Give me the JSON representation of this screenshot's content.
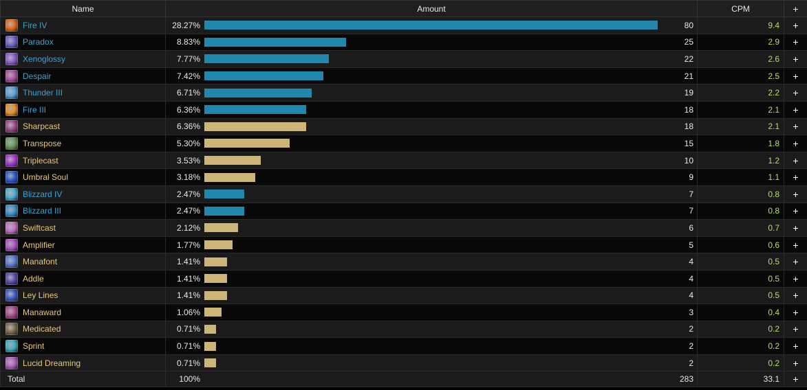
{
  "headers": {
    "name": "Name",
    "amount": "Amount",
    "cpm": "CPM",
    "plus": "+"
  },
  "colors": {
    "spell_text": "#3ea2cf",
    "ability_text": "#e9c878",
    "spell_bar": "#2087ad",
    "ability_bar": "#cdb57a",
    "cpm_text": "#b4e05a"
  },
  "rows": [
    {
      "name": "Fire IV",
      "type": "spell",
      "icon": "fire-iv-icon",
      "icon_color": "#e06a1a",
      "percent": "28.27%",
      "fraction": 0.2827,
      "count": "80",
      "cpm": "9.4"
    },
    {
      "name": "Paradox",
      "type": "spell",
      "icon": "paradox-icon",
      "icon_color": "#6b5fc8",
      "percent": "8.83%",
      "fraction": 0.0883,
      "count": "25",
      "cpm": "2.9"
    },
    {
      "name": "Xenoglossy",
      "type": "spell",
      "icon": "xenoglossy-icon",
      "icon_color": "#8d5ad0",
      "percent": "7.77%",
      "fraction": 0.0777,
      "count": "22",
      "cpm": "2.6"
    },
    {
      "name": "Despair",
      "type": "spell",
      "icon": "despair-icon",
      "icon_color": "#b04fa0",
      "percent": "7.42%",
      "fraction": 0.0742,
      "count": "21",
      "cpm": "2.5"
    },
    {
      "name": "Thunder III",
      "type": "spell",
      "icon": "thunder-iii-icon",
      "icon_color": "#5aa0e0",
      "percent": "6.71%",
      "fraction": 0.0671,
      "count": "19",
      "cpm": "2.2"
    },
    {
      "name": "Fire III",
      "type": "spell",
      "icon": "fire-iii-icon",
      "icon_color": "#e8902a",
      "percent": "6.36%",
      "fraction": 0.0636,
      "count": "18",
      "cpm": "2.1"
    },
    {
      "name": "Sharpcast",
      "type": "ability",
      "icon": "sharpcast-icon",
      "icon_color": "#9a4a8a",
      "percent": "6.36%",
      "fraction": 0.0636,
      "count": "18",
      "cpm": "2.1"
    },
    {
      "name": "Transpose",
      "type": "ability",
      "icon": "transpose-icon",
      "icon_color": "#6a9a5a",
      "percent": "5.30%",
      "fraction": 0.053,
      "count": "15",
      "cpm": "1.8"
    },
    {
      "name": "Triplecast",
      "type": "ability",
      "icon": "triplecast-icon",
      "icon_color": "#a03ad0",
      "percent": "3.53%",
      "fraction": 0.0353,
      "count": "10",
      "cpm": "1.2"
    },
    {
      "name": "Umbral Soul",
      "type": "ability",
      "icon": "umbral-soul-icon",
      "icon_color": "#2a5ad0",
      "percent": "3.18%",
      "fraction": 0.0318,
      "count": "9",
      "cpm": "1.1"
    },
    {
      "name": "Blizzard IV",
      "type": "spell",
      "icon": "blizzard-iv-icon",
      "icon_color": "#4ab0d8",
      "percent": "2.47%",
      "fraction": 0.0247,
      "count": "7",
      "cpm": "0.8"
    },
    {
      "name": "Blizzard III",
      "type": "spell",
      "icon": "blizzard-iii-icon",
      "icon_color": "#3a90c8",
      "percent": "2.47%",
      "fraction": 0.0247,
      "count": "7",
      "cpm": "0.8"
    },
    {
      "name": "Swiftcast",
      "type": "ability",
      "icon": "swiftcast-icon",
      "icon_color": "#c070c0",
      "percent": "2.12%",
      "fraction": 0.0212,
      "count": "6",
      "cpm": "0.7"
    },
    {
      "name": "Amplifier",
      "type": "ability",
      "icon": "amplifier-icon",
      "icon_color": "#b050c8",
      "percent": "1.77%",
      "fraction": 0.0177,
      "count": "5",
      "cpm": "0.6"
    },
    {
      "name": "Manafont",
      "type": "ability",
      "icon": "manafont-icon",
      "icon_color": "#5a7ad0",
      "percent": "1.41%",
      "fraction": 0.0141,
      "count": "4",
      "cpm": "0.5"
    },
    {
      "name": "Addle",
      "type": "ability",
      "icon": "addle-icon",
      "icon_color": "#5a4ab0",
      "percent": "1.41%",
      "fraction": 0.0141,
      "count": "4",
      "cpm": "0.5"
    },
    {
      "name": "Ley Lines",
      "type": "ability",
      "icon": "ley-lines-icon",
      "icon_color": "#3a5ac8",
      "percent": "1.41%",
      "fraction": 0.0141,
      "count": "4",
      "cpm": "0.5"
    },
    {
      "name": "Manaward",
      "type": "ability",
      "icon": "manaward-icon",
      "icon_color": "#b04a90",
      "percent": "1.06%",
      "fraction": 0.0106,
      "count": "3",
      "cpm": "0.4"
    },
    {
      "name": "Medicated",
      "type": "ability",
      "icon": "medicated-icon",
      "icon_color": "#7a6a4a",
      "percent": "0.71%",
      "fraction": 0.0071,
      "count": "2",
      "cpm": "0.2"
    },
    {
      "name": "Sprint",
      "type": "ability",
      "icon": "sprint-icon",
      "icon_color": "#3ab0c0",
      "percent": "0.71%",
      "fraction": 0.0071,
      "count": "2",
      "cpm": "0.2"
    },
    {
      "name": "Lucid Dreaming",
      "type": "ability",
      "icon": "lucid-dreaming-icon",
      "icon_color": "#b060c0",
      "percent": "0.71%",
      "fraction": 0.0071,
      "count": "2",
      "cpm": "0.2"
    }
  ],
  "total": {
    "label": "Total",
    "percent": "100%",
    "count": "283",
    "cpm": "33.1",
    "plus": "+"
  }
}
